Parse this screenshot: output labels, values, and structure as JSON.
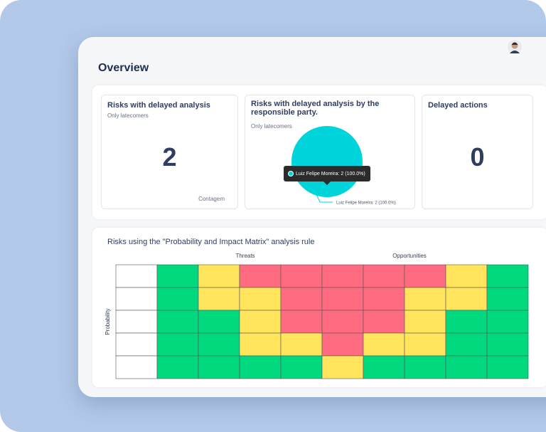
{
  "header": {
    "title": "Overview"
  },
  "cards": [
    {
      "title": "Risks with delayed analysis",
      "subtitle": "Only latecomers",
      "value": "2",
      "footer": "Contagem"
    },
    {
      "title": "Risks with delayed analysis by the responsible party.",
      "subtitle": "Only latecomers"
    },
    {
      "title": "Delayed actions",
      "value": "0"
    }
  ],
  "chart_data": {
    "type": "pie",
    "categories": [
      "Luiz Felipe Moreira"
    ],
    "values": [
      2
    ],
    "value_labels": [
      "Luiz Felipe Moreira: 2 (100.0%)"
    ],
    "color": "#00d4db"
  },
  "matrix": {
    "title": "Risks using the \"Probability and Impact Matrix\" analysis rule",
    "left_header": "Threats",
    "right_header": "Opportunities",
    "y_label": "Probability",
    "rows": [
      [
        "#ffffff",
        "#00d97e",
        "#ffe45c",
        "#ff6b81",
        "#ff6b81",
        "#ff6b81",
        "#ff6b81",
        "#ff6b81",
        "#ffe45c",
        "#00d97e"
      ],
      [
        "#ffffff",
        "#00d97e",
        "#ffe45c",
        "#ffe45c",
        "#ff6b81",
        "#ff6b81",
        "#ff6b81",
        "#ffe45c",
        "#ffe45c",
        "#00d97e"
      ],
      [
        "#ffffff",
        "#00d97e",
        "#00d97e",
        "#ffe45c",
        "#ff6b81",
        "#ff6b81",
        "#ff6b81",
        "#ffe45c",
        "#00d97e",
        "#00d97e"
      ],
      [
        "#ffffff",
        "#00d97e",
        "#00d97e",
        "#ffe45c",
        "#ffe45c",
        "#ff6b81",
        "#ffe45c",
        "#ffe45c",
        "#00d97e",
        "#00d97e"
      ],
      [
        "#ffffff",
        "#00d97e",
        "#00d97e",
        "#00d97e",
        "#00d97e",
        "#ffe45c",
        "#00d97e",
        "#00d97e",
        "#00d97e",
        "#00d97e"
      ]
    ]
  }
}
